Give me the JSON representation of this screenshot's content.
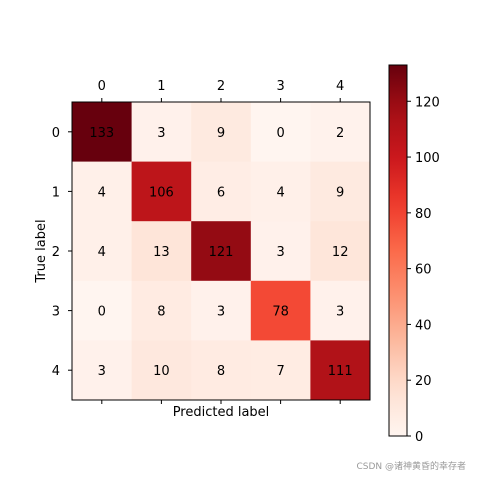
{
  "chart_data": {
    "type": "heatmap",
    "title": "",
    "xlabel": "Predicted label",
    "ylabel": "True label",
    "x_categories": [
      "0",
      "1",
      "2",
      "3",
      "4"
    ],
    "y_categories": [
      "0",
      "1",
      "2",
      "3",
      "4"
    ],
    "x_axis_position": "top",
    "values": [
      [
        133,
        3,
        9,
        0,
        2
      ],
      [
        4,
        106,
        6,
        4,
        9
      ],
      [
        4,
        13,
        121,
        3,
        12
      ],
      [
        0,
        8,
        3,
        78,
        3
      ],
      [
        3,
        10,
        8,
        7,
        111
      ]
    ],
    "colormap": "Reds",
    "color_range": [
      0,
      133
    ],
    "colorbar_ticks": [
      "0",
      "20",
      "40",
      "60",
      "80",
      "100",
      "120"
    ],
    "grid": false
  },
  "watermark": "CSDN @诸神黄昏的幸存者"
}
